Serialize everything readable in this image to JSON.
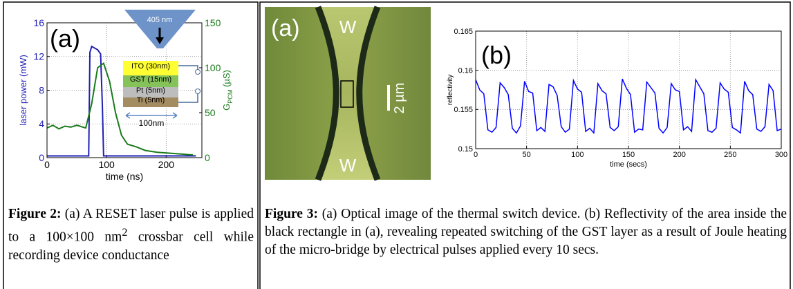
{
  "figure2": {
    "panel_label": "(a)",
    "chart": {
      "type": "line",
      "x_label": "time (ns)",
      "y_label": "laser power (mW)",
      "y2_label": {
        "main": "G",
        "sub": "PCM",
        "unit": " (µS)"
      },
      "xlim": [
        0,
        260
      ],
      "xticks": [
        0,
        100,
        200
      ],
      "ylim": [
        0,
        16
      ],
      "yticks": [
        0,
        4,
        8,
        12,
        16
      ],
      "y2lim": [
        0,
        150
      ],
      "y2ticks": [
        0,
        50,
        100,
        150
      ],
      "grid": true,
      "series": [
        {
          "color": "#1f1fb4",
          "x": [
            0,
            20,
            40,
            60,
            70,
            72,
            75,
            80,
            85,
            90,
            93,
            95,
            100,
            150,
            200,
            250
          ],
          "values": [
            0.2,
            0.2,
            0.2,
            0.2,
            0.2,
            12.5,
            13.2,
            13,
            12.8,
            12.3,
            6,
            0.2,
            0.2,
            0.2,
            0.2,
            0.2
          ]
        },
        {
          "color": "#1a7a1a",
          "axis": "y2",
          "x": [
            0,
            10,
            20,
            30,
            40,
            50,
            65,
            75,
            85,
            95,
            105,
            115,
            125,
            135,
            150,
            165,
            185,
            205,
            225,
            245
          ],
          "values": [
            33,
            36,
            32,
            35,
            34,
            36,
            33,
            60,
            100,
            105,
            85,
            50,
            25,
            15,
            12,
            8,
            6,
            5,
            4,
            3
          ]
        }
      ]
    },
    "inset": {
      "wavelength": "405 nm",
      "layers": [
        "ITO (30nm)",
        "GST (15nm)",
        "Pt (5nm)",
        "Ti (5nm)"
      ],
      "width": "100nm"
    },
    "caption": {
      "label": "Figure 2:",
      "text": " (a) A RESET laser pulse is applied to a 100×100 nm",
      "sup": "2",
      "rest": " crossbar cell while recording device conductance"
    }
  },
  "figure3": {
    "image": {
      "panel_label": "(a)",
      "electrode_top": "W",
      "electrode_bottom": "W",
      "scale_bar": "2 µm"
    },
    "panel_label": "(b)",
    "chart": {
      "type": "line",
      "x_label": "time (secs)",
      "y_label": "reflectivity",
      "xlim": [
        0,
        300
      ],
      "xticks": [
        0,
        50,
        100,
        150,
        200,
        250,
        300
      ],
      "ylim": [
        0.15,
        0.165
      ],
      "yticks": [
        0.15,
        0.155,
        0.16,
        0.165
      ],
      "grid": true,
      "series": [
        {
          "color": "#0000ff",
          "x": [
            0,
            4,
            8,
            12,
            16,
            20,
            24,
            28,
            32,
            36,
            40,
            44,
            48,
            52,
            56,
            60,
            64,
            68,
            72,
            76,
            80,
            84,
            88,
            92,
            96,
            100,
            104,
            108,
            112,
            116,
            120,
            124,
            128,
            132,
            136,
            140,
            144,
            148,
            152,
            156,
            160,
            164,
            168,
            172,
            176,
            180,
            184,
            188,
            192,
            196,
            200,
            204,
            208,
            212,
            216,
            220,
            224,
            228,
            232,
            236,
            240,
            244,
            248,
            252,
            256,
            260,
            264,
            268,
            272,
            276,
            280,
            284,
            288,
            292,
            296,
            300
          ],
          "values": [
            0.1588,
            0.1575,
            0.157,
            0.1524,
            0.1521,
            0.1527,
            0.1584,
            0.1578,
            0.1569,
            0.1526,
            0.152,
            0.1529,
            0.1586,
            0.1573,
            0.1571,
            0.1523,
            0.1527,
            0.1522,
            0.1582,
            0.1579,
            0.1568,
            0.1528,
            0.1521,
            0.1525,
            0.1587,
            0.1576,
            0.1572,
            0.1522,
            0.1526,
            0.152,
            0.1583,
            0.1574,
            0.157,
            0.1527,
            0.1523,
            0.1528,
            0.1589,
            0.1577,
            0.1569,
            0.1521,
            0.1525,
            0.1524,
            0.1585,
            0.1578,
            0.1571,
            0.1526,
            0.152,
            0.1527,
            0.1583,
            0.1575,
            0.1573,
            0.1524,
            0.1528,
            0.1522,
            0.1588,
            0.1579,
            0.157,
            0.1523,
            0.1521,
            0.1526,
            0.1584,
            0.1576,
            0.1572,
            0.1527,
            0.1524,
            0.152,
            0.1586,
            0.1574,
            0.1569,
            0.1525,
            0.1522,
            0.1528,
            0.1582,
            0.1574,
            0.1523,
            0.1525
          ]
        }
      ]
    },
    "caption": {
      "label": "Figure 3:",
      "text": " (a) Optical image of the thermal switch device. (b) Reflectivity of the area inside the black rectangle in (a), revealing repeated switching of the GST layer as a result of Joule heating of the micro-bridge by electrical pulses applied every 10 secs."
    }
  }
}
